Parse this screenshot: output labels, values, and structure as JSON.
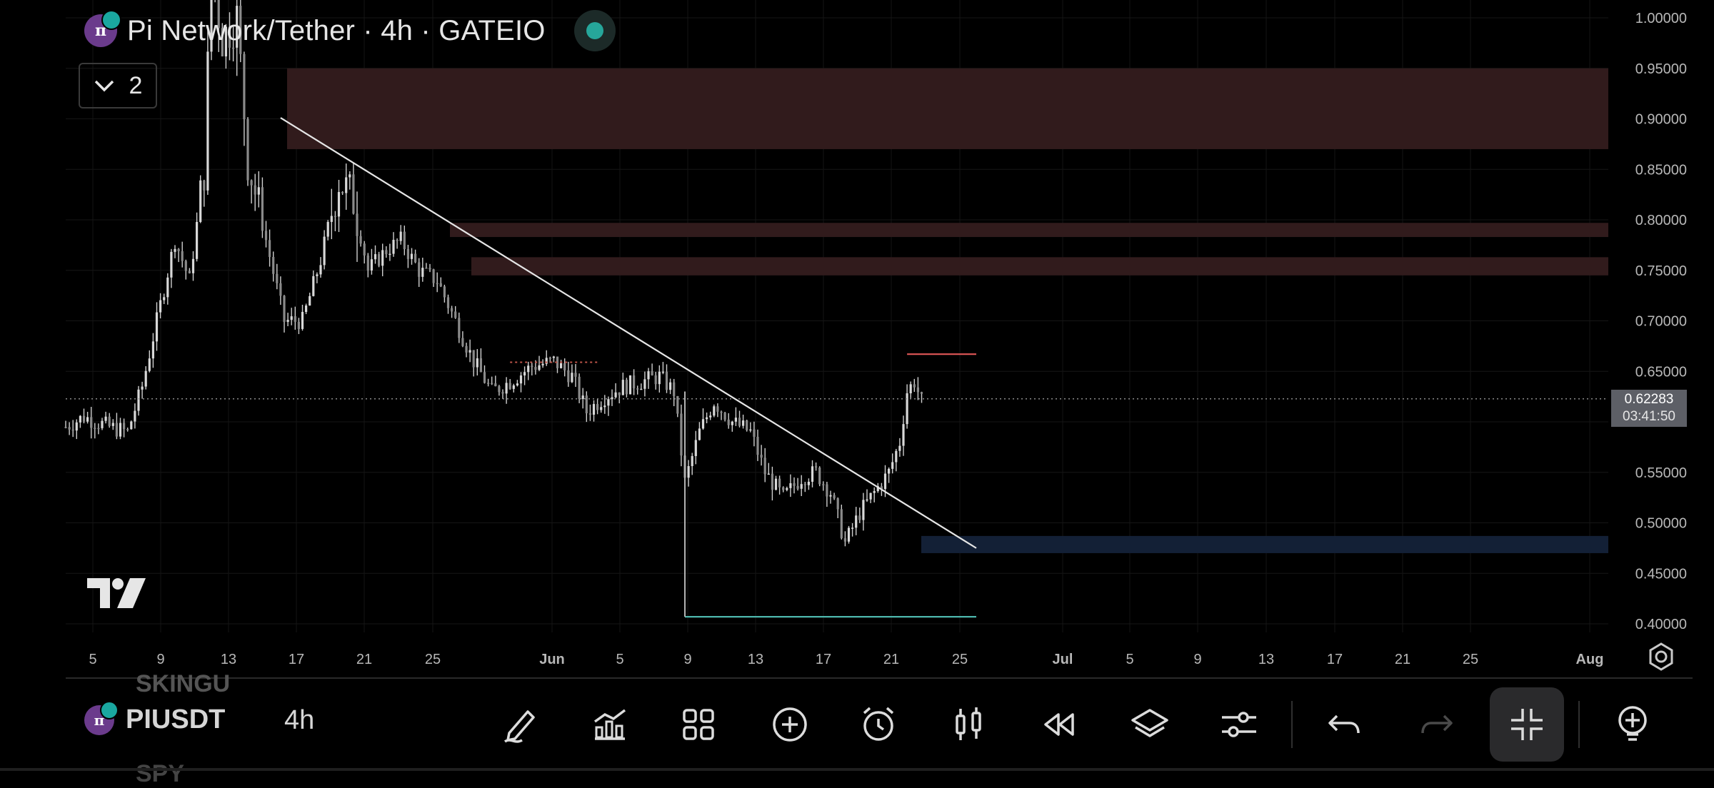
{
  "header": {
    "title": "Pi Network/Tether · 4h · GATEIO",
    "logo_letter": "π",
    "status": "live",
    "status_color": "#26a69a",
    "collapse_count": "2"
  },
  "price_tag": {
    "price": "0.62283",
    "countdown": "03:41:50"
  },
  "chart_data": {
    "type": "candlestick",
    "title": "Pi Network/Tether · 4h · GATEIO",
    "xlabel": "",
    "ylabel": "",
    "ylim": [
      0.38,
      1.0
    ],
    "x_ticks": [
      "5",
      "9",
      "13",
      "17",
      "21",
      "25",
      "Jun",
      "5",
      "9",
      "13",
      "17",
      "21",
      "25",
      "Jul",
      "5",
      "9",
      "13",
      "17",
      "21",
      "25",
      "Aug"
    ],
    "y_ticks": [
      "1.00000",
      "0.95000",
      "0.90000",
      "0.85000",
      "0.80000",
      "0.75000",
      "0.70000",
      "0.65000",
      "0.60000",
      "0.55000",
      "0.50000",
      "0.45000",
      "0.40000"
    ],
    "approx_path": [
      {
        "x": 0,
        "y": 0.595
      },
      {
        "x": 5,
        "y": 0.605
      },
      {
        "x": 12,
        "y": 0.595
      },
      {
        "x": 17,
        "y": 0.59
      },
      {
        "x": 21,
        "y": 0.635
      },
      {
        "x": 25,
        "y": 0.7
      },
      {
        "x": 30,
        "y": 0.78
      },
      {
        "x": 34,
        "y": 0.74
      },
      {
        "x": 38,
        "y": 0.85
      },
      {
        "x": 40,
        "y": 1.05
      },
      {
        "x": 43,
        "y": 0.98
      },
      {
        "x": 47,
        "y": 1.0
      },
      {
        "x": 50,
        "y": 0.86
      },
      {
        "x": 55,
        "y": 0.78
      },
      {
        "x": 60,
        "y": 0.7
      },
      {
        "x": 65,
        "y": 0.7
      },
      {
        "x": 70,
        "y": 0.76
      },
      {
        "x": 75,
        "y": 0.84
      },
      {
        "x": 79,
        "y": 0.82
      },
      {
        "x": 83,
        "y": 0.75
      },
      {
        "x": 88,
        "y": 0.77
      },
      {
        "x": 92,
        "y": 0.78
      },
      {
        "x": 97,
        "y": 0.75
      },
      {
        "x": 102,
        "y": 0.74
      },
      {
        "x": 107,
        "y": 0.7
      },
      {
        "x": 112,
        "y": 0.66
      },
      {
        "x": 117,
        "y": 0.63
      },
      {
        "x": 122,
        "y": 0.64
      },
      {
        "x": 128,
        "y": 0.655
      },
      {
        "x": 134,
        "y": 0.66
      },
      {
        "x": 139,
        "y": 0.645
      },
      {
        "x": 143,
        "y": 0.61
      },
      {
        "x": 148,
        "y": 0.625
      },
      {
        "x": 153,
        "y": 0.635
      },
      {
        "x": 158,
        "y": 0.64
      },
      {
        "x": 163,
        "y": 0.645
      },
      {
        "x": 167,
        "y": 0.63
      },
      {
        "x": 170,
        "y": 0.54
      },
      {
        "x": 174,
        "y": 0.59
      },
      {
        "x": 178,
        "y": 0.62
      },
      {
        "x": 183,
        "y": 0.6
      },
      {
        "x": 188,
        "y": 0.59
      },
      {
        "x": 192,
        "y": 0.55
      },
      {
        "x": 197,
        "y": 0.525
      },
      {
        "x": 202,
        "y": 0.545
      },
      {
        "x": 206,
        "y": 0.55
      },
      {
        "x": 210,
        "y": 0.53
      },
      {
        "x": 214,
        "y": 0.48
      },
      {
        "x": 218,
        "y": 0.51
      },
      {
        "x": 222,
        "y": 0.53
      },
      {
        "x": 226,
        "y": 0.55
      },
      {
        "x": 229,
        "y": 0.58
      },
      {
        "x": 231,
        "y": 0.63
      },
      {
        "x": 233,
        "y": 0.64
      },
      {
        "x": 235,
        "y": 0.62
      }
    ],
    "last_price": 0.62283,
    "zones": [
      {
        "from": 0.87,
        "to": 0.95,
        "color": "#311b1c"
      },
      {
        "from": 0.783,
        "to": 0.797,
        "color": "#311b1c"
      },
      {
        "from": 0.745,
        "to": 0.763,
        "color": "#311b1c"
      },
      {
        "from": 0.47,
        "to": 0.487,
        "color": "#132036"
      }
    ],
    "trendline": {
      "from": {
        "x": 59,
        "y": 0.901
      },
      "to": {
        "x": 250,
        "y": 0.475
      },
      "color": "#e6e6e6"
    },
    "levels": [
      {
        "name": "resistance",
        "price": 0.667,
        "x_from": 231,
        "x_to": 250,
        "color": "#e05757"
      },
      {
        "name": "support",
        "price": 0.407,
        "x_from": 170,
        "x_to": 250,
        "color": "#4db6ac"
      }
    ],
    "dotted_range": {
      "price": 0.659,
      "x_from": 122,
      "x_to": 146,
      "color": "#c0564a"
    },
    "vertical_drop": {
      "x": 170,
      "from": 0.63,
      "to": 0.407,
      "color": "#b3b3b3"
    }
  },
  "toolbar": {
    "symbol": "PIUSDT",
    "ghost_above": "SKINGU",
    "ghost_below": "SPY",
    "interval": "4h",
    "buttons": [
      {
        "name": "draw-tool-button",
        "icon": "pen-icon"
      },
      {
        "name": "indicators-button",
        "icon": "indicators-icon"
      },
      {
        "name": "layout-grid-button",
        "icon": "grid-icon"
      },
      {
        "name": "add-symbol-button",
        "icon": "plus-circle-icon"
      },
      {
        "name": "alert-button",
        "icon": "alarm-clock-icon"
      },
      {
        "name": "chart-type-button",
        "icon": "candle-icon"
      },
      {
        "name": "replay-button",
        "icon": "rewind-icon"
      },
      {
        "name": "layers-button",
        "icon": "layers-icon"
      },
      {
        "name": "settings-sliders-button",
        "icon": "sliders-icon"
      },
      {
        "name": "undo-button",
        "icon": "undo-icon"
      },
      {
        "name": "redo-button",
        "icon": "redo-icon"
      },
      {
        "name": "exit-fullscreen-button",
        "icon": "collapse-icon"
      },
      {
        "name": "more-tools-button",
        "icon": "bulb-plus-icon"
      }
    ]
  }
}
